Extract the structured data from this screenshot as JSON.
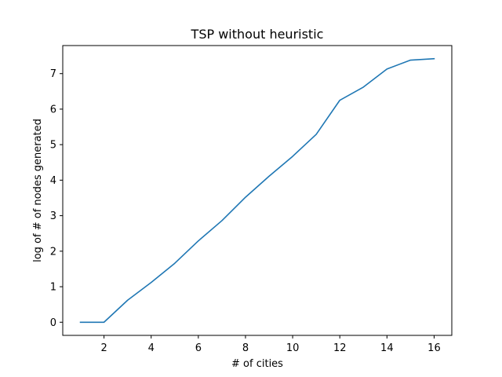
{
  "chart_data": {
    "type": "line",
    "title": "TSP without heuristic",
    "xlabel": "# of cities",
    "ylabel": "log of # of nodes generated",
    "xlim": [
      0.25,
      16.75
    ],
    "ylim": [
      -0.37,
      7.79
    ],
    "x_ticks": [
      2,
      4,
      6,
      8,
      10,
      12,
      14,
      16
    ],
    "y_ticks": [
      0,
      1,
      2,
      3,
      4,
      5,
      6,
      7
    ],
    "grid": false,
    "series": [
      {
        "color": "#1f77b4",
        "x": [
          1,
          2,
          3,
          4,
          5,
          6,
          7,
          8,
          9,
          10,
          11,
          12,
          13,
          14,
          15,
          16
        ],
        "y": [
          0.0,
          0.0,
          0.62,
          1.12,
          1.66,
          2.29,
          2.86,
          3.52,
          4.11,
          4.67,
          5.29,
          6.25,
          6.62,
          7.13,
          7.38,
          7.42
        ]
      }
    ]
  }
}
